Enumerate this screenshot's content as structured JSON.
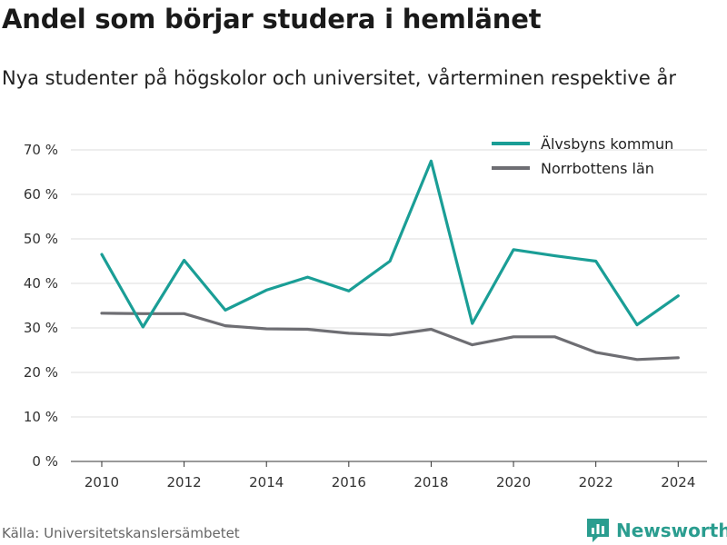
{
  "title": "Andel som börjar studera i hemlänet",
  "subtitle": "Nya studenter på högskolor och universitet, vårterminen respektive år",
  "source": "Källa: Universitetskanslersämbetet",
  "brand": {
    "name": "Newsworthy",
    "icon": "newsworthy-logo-icon",
    "color": "#2a9d8f"
  },
  "chart_data": {
    "type": "line",
    "x": [
      2010,
      2011,
      2012,
      2013,
      2014,
      2015,
      2016,
      2017,
      2018,
      2019,
      2020,
      2021,
      2022,
      2023,
      2024
    ],
    "x_ticks": [
      2010,
      2012,
      2014,
      2016,
      2018,
      2020,
      2022,
      2024
    ],
    "y_ticks": [
      0,
      10,
      20,
      30,
      40,
      50,
      60,
      70
    ],
    "y_tick_labels": [
      "0 %",
      "10 %",
      "20 %",
      "30 %",
      "40 %",
      "50 %",
      "60 %",
      "70 %"
    ],
    "ylim": [
      0,
      70
    ],
    "xlim": [
      2009.25,
      2024.7
    ],
    "grid": true,
    "legend_position": "top-right",
    "series": [
      {
        "name": "Älvsbyns kommun",
        "color": "#1a9e96",
        "values": [
          46.5,
          30.2,
          45.2,
          34.0,
          38.5,
          41.4,
          38.3,
          45.0,
          67.5,
          31.0,
          47.6,
          46.2,
          45.0,
          30.7,
          37.2
        ]
      },
      {
        "name": "Norrbottens län",
        "color": "#6e6e73",
        "values": [
          33.3,
          33.2,
          33.2,
          30.5,
          29.8,
          29.7,
          28.8,
          28.4,
          29.7,
          26.2,
          28.0,
          28.0,
          24.5,
          22.9,
          23.3
        ]
      }
    ]
  }
}
